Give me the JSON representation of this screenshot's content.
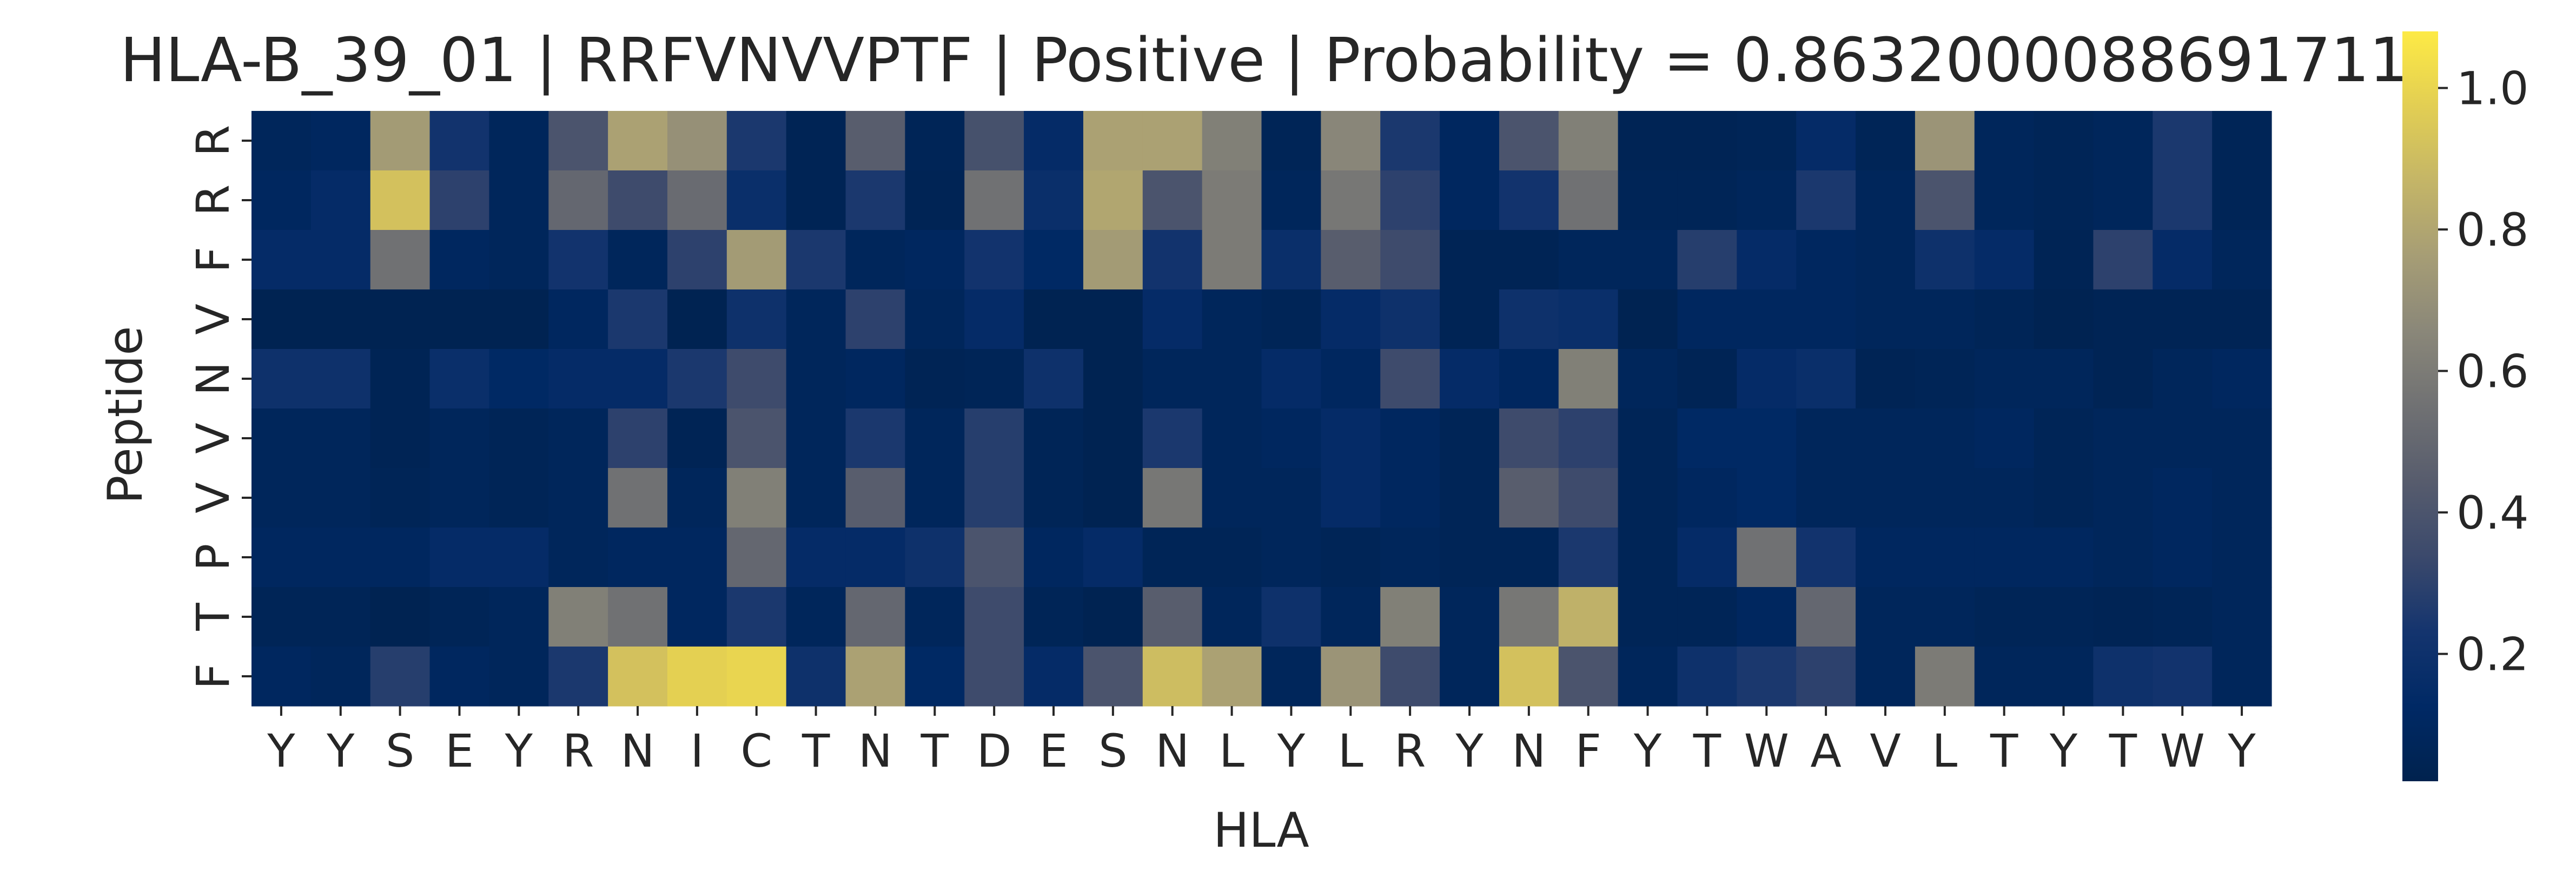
{
  "chart_data": {
    "type": "heatmap",
    "title": "HLA-B_39_01 | RRFVNVVPTF | Positive | Probability = 0.8632000088691711",
    "xlabel": "HLA",
    "ylabel": "Peptide",
    "x_categories": [
      "Y",
      "Y",
      "S",
      "E",
      "Y",
      "R",
      "N",
      "I",
      "C",
      "T",
      "N",
      "T",
      "D",
      "E",
      "S",
      "N",
      "L",
      "Y",
      "L",
      "R",
      "Y",
      "N",
      "F",
      "Y",
      "T",
      "W",
      "A",
      "V",
      "L",
      "T",
      "Y",
      "T",
      "W",
      "Y"
    ],
    "y_categories": [
      "R",
      "R",
      "F",
      "V",
      "N",
      "V",
      "V",
      "P",
      "T",
      "F"
    ],
    "values": [
      [
        0.08,
        0.1,
        0.75,
        0.22,
        0.08,
        0.4,
        0.78,
        0.7,
        0.25,
        0.05,
        0.45,
        0.06,
        0.38,
        0.15,
        0.78,
        0.78,
        0.62,
        0.06,
        0.65,
        0.25,
        0.1,
        0.4,
        0.62,
        0.05,
        0.05,
        0.06,
        0.15,
        0.06,
        0.72,
        0.08,
        0.06,
        0.08,
        0.25,
        0.06
      ],
      [
        0.1,
        0.15,
        0.92,
        0.3,
        0.08,
        0.5,
        0.35,
        0.52,
        0.18,
        0.05,
        0.25,
        0.05,
        0.55,
        0.18,
        0.8,
        0.4,
        0.6,
        0.08,
        0.58,
        0.3,
        0.1,
        0.22,
        0.55,
        0.06,
        0.06,
        0.08,
        0.25,
        0.08,
        0.4,
        0.08,
        0.06,
        0.08,
        0.25,
        0.06
      ],
      [
        0.15,
        0.15,
        0.55,
        0.1,
        0.08,
        0.22,
        0.08,
        0.3,
        0.75,
        0.25,
        0.08,
        0.1,
        0.22,
        0.12,
        0.75,
        0.22,
        0.6,
        0.18,
        0.45,
        0.35,
        0.05,
        0.05,
        0.08,
        0.08,
        0.28,
        0.15,
        0.1,
        0.08,
        0.2,
        0.15,
        0.05,
        0.3,
        0.15,
        0.08
      ],
      [
        0.04,
        0.04,
        0.04,
        0.04,
        0.04,
        0.1,
        0.25,
        0.04,
        0.2,
        0.08,
        0.3,
        0.08,
        0.15,
        0.04,
        0.04,
        0.15,
        0.08,
        0.06,
        0.15,
        0.2,
        0.05,
        0.2,
        0.18,
        0.04,
        0.1,
        0.1,
        0.1,
        0.08,
        0.08,
        0.06,
        0.04,
        0.05,
        0.05,
        0.05
      ],
      [
        0.2,
        0.2,
        0.05,
        0.18,
        0.12,
        0.15,
        0.15,
        0.25,
        0.35,
        0.08,
        0.1,
        0.05,
        0.06,
        0.2,
        0.04,
        0.08,
        0.08,
        0.15,
        0.1,
        0.35,
        0.15,
        0.1,
        0.62,
        0.08,
        0.05,
        0.15,
        0.18,
        0.05,
        0.06,
        0.08,
        0.08,
        0.05,
        0.08,
        0.1
      ],
      [
        0.08,
        0.08,
        0.05,
        0.08,
        0.06,
        0.08,
        0.3,
        0.05,
        0.4,
        0.08,
        0.25,
        0.08,
        0.28,
        0.06,
        0.04,
        0.25,
        0.08,
        0.1,
        0.15,
        0.1,
        0.06,
        0.35,
        0.3,
        0.06,
        0.12,
        0.12,
        0.08,
        0.08,
        0.08,
        0.1,
        0.06,
        0.08,
        0.08,
        0.08
      ],
      [
        0.08,
        0.08,
        0.06,
        0.08,
        0.06,
        0.08,
        0.55,
        0.08,
        0.62,
        0.08,
        0.45,
        0.08,
        0.28,
        0.06,
        0.04,
        0.58,
        0.08,
        0.08,
        0.15,
        0.1,
        0.06,
        0.45,
        0.35,
        0.06,
        0.1,
        0.12,
        0.08,
        0.08,
        0.08,
        0.08,
        0.06,
        0.08,
        0.1,
        0.08
      ],
      [
        0.1,
        0.1,
        0.1,
        0.15,
        0.15,
        0.08,
        0.1,
        0.1,
        0.5,
        0.15,
        0.15,
        0.2,
        0.4,
        0.1,
        0.15,
        0.06,
        0.06,
        0.08,
        0.06,
        0.08,
        0.06,
        0.06,
        0.25,
        0.06,
        0.15,
        0.55,
        0.22,
        0.1,
        0.1,
        0.1,
        0.1,
        0.08,
        0.1,
        0.08
      ],
      [
        0.06,
        0.06,
        0.04,
        0.06,
        0.08,
        0.62,
        0.55,
        0.1,
        0.25,
        0.08,
        0.5,
        0.08,
        0.35,
        0.06,
        0.04,
        0.45,
        0.08,
        0.2,
        0.08,
        0.62,
        0.08,
        0.58,
        0.85,
        0.06,
        0.06,
        0.1,
        0.5,
        0.08,
        0.08,
        0.06,
        0.06,
        0.05,
        0.06,
        0.08
      ],
      [
        0.1,
        0.08,
        0.28,
        0.1,
        0.08,
        0.25,
        0.92,
        0.98,
        1.0,
        0.2,
        0.78,
        0.12,
        0.35,
        0.15,
        0.4,
        0.9,
        0.78,
        0.08,
        0.72,
        0.35,
        0.08,
        0.92,
        0.4,
        0.08,
        0.2,
        0.25,
        0.3,
        0.08,
        0.6,
        0.08,
        0.08,
        0.2,
        0.22,
        0.08
      ]
    ],
    "colormap": "cividis",
    "vmin": 0.02,
    "vmax": 1.08,
    "colorbar_ticks": [
      {
        "value": 0.2,
        "label": "0.2"
      },
      {
        "value": 0.4,
        "label": "0.4"
      },
      {
        "value": 0.6,
        "label": "0.6"
      },
      {
        "value": 0.8,
        "label": "0.8"
      },
      {
        "value": 1.0,
        "label": "1.0"
      }
    ]
  }
}
